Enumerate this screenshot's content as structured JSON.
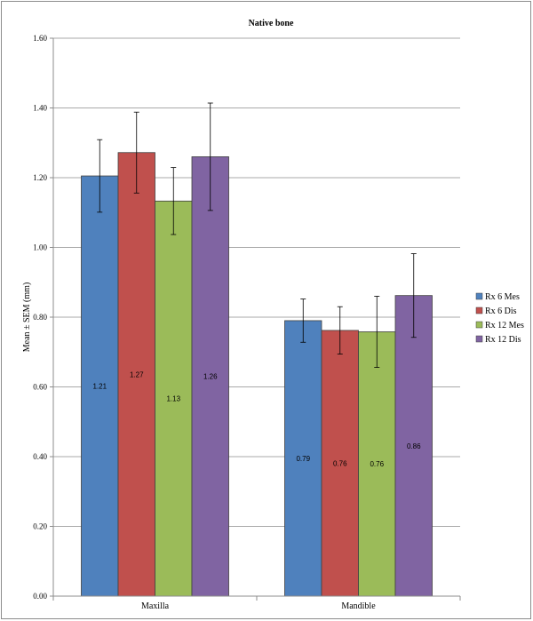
{
  "chart_data": {
    "type": "bar",
    "title": "Native bone",
    "ylabel": "Mean ± SEM (mm)",
    "xlabel": "",
    "ylim": [
      0,
      1.6
    ],
    "ytick_step": 0.2,
    "ytick_labels": [
      "0.00",
      "0.20",
      "0.40",
      "0.60",
      "0.80",
      "1.00",
      "1.20",
      "1.40",
      "1.60"
    ],
    "grid": true,
    "legend_position": "right",
    "categories": [
      "Maxilla",
      "Mandible"
    ],
    "series": [
      {
        "name": "Rx 6 Mes",
        "color": "#4f81bd",
        "values": [
          1.205,
          0.79
        ],
        "labels": [
          "1.21",
          "0.79"
        ],
        "errors": [
          0.104,
          0.062
        ]
      },
      {
        "name": "Rx 6 Dis",
        "color": "#c0504d",
        "values": [
          1.272,
          0.762
        ],
        "labels": [
          "1.27",
          "0.76"
        ],
        "errors": [
          0.116,
          0.068
        ]
      },
      {
        "name": "Rx 12 Mes",
        "color": "#9bbb59",
        "values": [
          1.133,
          0.758
        ],
        "labels": [
          "1.13",
          "0.76"
        ],
        "errors": [
          0.096,
          0.102
        ]
      },
      {
        "name": "Rx 12 Dis",
        "color": "#8064a2",
        "values": [
          1.26,
          0.862
        ],
        "labels": [
          "1.26",
          "0.86"
        ],
        "errors": [
          0.154,
          0.12
        ]
      }
    ]
  }
}
